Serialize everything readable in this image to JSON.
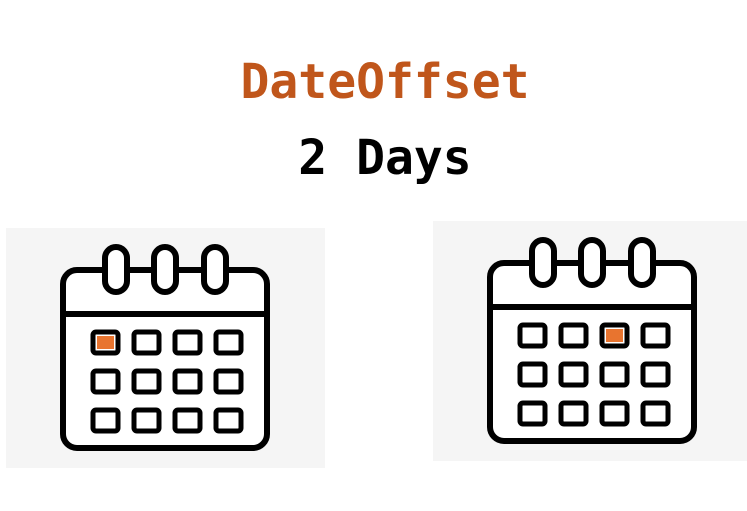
{
  "title": "DateOffset",
  "subtitle": "2 Days",
  "colors": {
    "title": "#c0561b",
    "highlight": "#e8742f",
    "outline": "#000000",
    "panel_background": "#f5f5f5"
  },
  "calendars": [
    {
      "name": "start-date",
      "rows": 3,
      "cols": 4,
      "highlight_row": 0,
      "highlight_col": 0
    },
    {
      "name": "offset-date",
      "rows": 3,
      "cols": 4,
      "highlight_row": 0,
      "highlight_col": 2
    }
  ]
}
